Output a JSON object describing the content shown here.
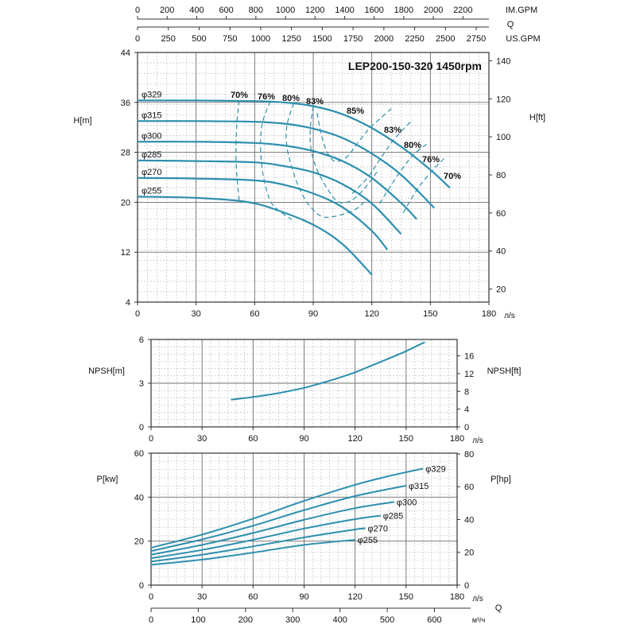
{
  "chart_data": [
    {
      "type": "line",
      "name": "head",
      "title": "LEP200-150-320 1450rpm",
      "xlabel": "л/s",
      "ylabel": "H[m]",
      "ylabel_right": "H[ft]",
      "xlim": [
        0,
        180
      ],
      "ylim": [
        4,
        44
      ],
      "xticks": [
        "0",
        "30",
        "60",
        "90",
        "120",
        "150",
        "180"
      ],
      "yticks": [
        "4",
        "12",
        "20",
        "28",
        "36",
        "44"
      ],
      "yticks_right": [
        "20",
        "40",
        "60",
        "80",
        "100",
        "120",
        "140"
      ],
      "grid": true,
      "top_axes": {
        "q_label": "Q",
        "im_gpm_label": "IM.GPM",
        "im_gpm_ticks": [
          "0",
          "200",
          "400",
          "600",
          "800",
          "1000",
          "1200",
          "1400",
          "1600",
          "1800",
          "2000",
          "2200"
        ],
        "us_gpm_label": "US.GPM",
        "us_gpm_ticks": [
          "0",
          "250",
          "500",
          "750",
          "1000",
          "1250",
          "1500",
          "1750",
          "2000",
          "2250",
          "2500",
          "2750"
        ]
      },
      "series": [
        {
          "name": "φ329",
          "x": [
            0,
            30,
            60,
            75,
            90,
            105,
            120,
            135,
            150,
            160
          ],
          "y": [
            36.3,
            36.3,
            36.2,
            36.0,
            35.4,
            34.1,
            31.9,
            28.9,
            25.2,
            22.3
          ]
        },
        {
          "name": "φ315",
          "x": [
            0,
            30,
            60,
            75,
            90,
            105,
            120,
            135,
            152
          ],
          "y": [
            33.0,
            33.0,
            32.9,
            32.6,
            31.8,
            30.3,
            27.8,
            24.4,
            19.1
          ]
        },
        {
          "name": "φ300",
          "x": [
            0,
            30,
            60,
            75,
            90,
            105,
            120,
            135,
            143
          ],
          "y": [
            29.7,
            29.7,
            29.5,
            29.1,
            28.2,
            26.6,
            23.9,
            19.9,
            17.3
          ]
        },
        {
          "name": "φ285",
          "x": [
            0,
            30,
            60,
            75,
            90,
            105,
            120,
            135
          ],
          "y": [
            26.7,
            26.6,
            26.4,
            25.8,
            24.8,
            22.9,
            19.8,
            14.9
          ]
        },
        {
          "name": "φ270",
          "x": [
            0,
            30,
            60,
            75,
            90,
            105,
            120,
            128
          ],
          "y": [
            23.9,
            23.8,
            23.5,
            22.8,
            21.4,
            19.2,
            15.4,
            12.4
          ]
        },
        {
          "name": "φ255",
          "x": [
            0,
            30,
            55,
            70,
            90,
            105,
            120
          ],
          "y": [
            20.9,
            20.7,
            20.1,
            18.9,
            16.4,
            13.3,
            8.4
          ]
        }
      ],
      "efficiency_curves": [
        {
          "label": "70%",
          "x": [
            52.0,
            51.0,
            50.5,
            50.5,
            51.0,
            52.0
          ],
          "y": [
            36.3,
            33.0,
            29.7,
            26.7,
            23.9,
            20.4
          ]
        },
        {
          "label": "76%",
          "x": [
            68.0,
            64.0,
            63.0,
            63.5,
            65.0,
            69.0,
            79.0
          ],
          "y": [
            36.2,
            32.8,
            29.5,
            26.3,
            23.4,
            19.7,
            17.2
          ]
        },
        {
          "label": "80%",
          "x": [
            80.0,
            76.5,
            76.5,
            79.0,
            82.5,
            88.0,
            96.0,
            110.0,
            117.0
          ],
          "y": [
            35.9,
            32.3,
            28.9,
            25.7,
            22.5,
            19.5,
            17.6,
            18.6,
            20.3
          ]
        },
        {
          "label": "83%",
          "x": [
            90.0,
            88.5,
            89.0,
            92.0,
            97.0,
            102.5,
            109.0,
            116.0,
            123.0
          ],
          "y": [
            35.4,
            31.7,
            28.3,
            25.2,
            22.3,
            20.1,
            20.2,
            22.1,
            25.0
          ]
        },
        {
          "label": "83%",
          "x": [
            92.0,
            94.0,
            97.0,
            101.0,
            107.0,
            113.0,
            119.0,
            125.0,
            130.0
          ],
          "y": [
            34.3,
            31.0,
            28.1,
            26.6,
            27.2,
            29.6,
            31.9,
            33.6,
            35.0
          ]
        },
        {
          "label": "80%",
          "x": [
            110.0,
            118.0,
            124.0,
            130.0,
            136.0,
            141.0
          ],
          "y": [
            21.4,
            24.0,
            26.8,
            29.5,
            31.7,
            33.2
          ]
        },
        {
          "label": "76%",
          "x": [
            124.0,
            133.0,
            141.0,
            148.0
          ],
          "y": [
            19.8,
            24.2,
            27.5,
            29.3
          ]
        },
        {
          "label": "70%",
          "x": [
            136.0,
            144.0,
            152.0,
            157.0
          ],
          "y": [
            18.3,
            22.4,
            25.4,
            27.0
          ]
        }
      ],
      "efficiency_labels": [
        "70%",
        "76%",
        "80%",
        "83%",
        "85%",
        "83%",
        "80%",
        "76%",
        "70%"
      ],
      "diameter_labels": [
        "φ329",
        "φ315",
        "φ300",
        "φ285",
        "φ270",
        "φ255"
      ]
    },
    {
      "type": "line",
      "name": "npsh",
      "xlabel": "л/s",
      "ylabel": "NPSH[m]",
      "ylabel_right": "NPSH[ft]",
      "xlim": [
        0,
        180
      ],
      "ylim": [
        0,
        6
      ],
      "xticks": [
        "0",
        "30",
        "60",
        "90",
        "120",
        "150",
        "180"
      ],
      "yticks": [
        "0",
        "3",
        "6"
      ],
      "yticks_right": [
        "0",
        "4",
        "8",
        "12",
        "16"
      ],
      "grid": true,
      "series": [
        {
          "x": [
            47,
            60,
            75,
            90,
            100,
            110,
            120,
            130,
            140,
            150,
            161
          ],
          "y": [
            1.87,
            2.05,
            2.32,
            2.68,
            3.0,
            3.35,
            3.75,
            4.22,
            4.7,
            5.2,
            5.82
          ]
        }
      ]
    },
    {
      "type": "line",
      "name": "power",
      "xlabel": "л/s",
      "ylabel": "P[kw]",
      "ylabel_right": "P[hp]",
      "xlim": [
        0,
        180
      ],
      "ylim": [
        0,
        60
      ],
      "xticks": [
        "0",
        "30",
        "60",
        "90",
        "120",
        "150",
        "180"
      ],
      "yticks": [
        "0",
        "20",
        "40",
        "60"
      ],
      "yticks_right": [
        "0",
        "20",
        "40",
        "60",
        "80"
      ],
      "grid": true,
      "bottom_axis": {
        "label": "Q",
        "unit": "м³/ч",
        "ticks": [
          "0",
          "100",
          "200",
          "300",
          "400",
          "500",
          "600"
        ]
      },
      "series": [
        {
          "name": "φ329",
          "x": [
            0,
            30,
            60,
            90,
            120,
            140,
            160
          ],
          "y": [
            17.0,
            23.0,
            30.2,
            38.3,
            45.6,
            49.6,
            53.0
          ]
        },
        {
          "name": "φ315",
          "x": [
            0,
            30,
            60,
            90,
            120,
            150
          ],
          "y": [
            15.5,
            20.8,
            27.0,
            34.1,
            40.5,
            45.2
          ]
        },
        {
          "name": "φ300",
          "x": [
            0,
            30,
            60,
            90,
            120,
            143
          ],
          "y": [
            13.8,
            18.3,
            23.7,
            29.7,
            35.0,
            37.8
          ]
        },
        {
          "name": "φ285",
          "x": [
            0,
            30,
            60,
            90,
            120,
            135
          ],
          "y": [
            12.2,
            16.0,
            20.6,
            25.7,
            30.0,
            31.6
          ]
        },
        {
          "name": "φ270",
          "x": [
            0,
            30,
            60,
            90,
            120,
            126
          ],
          "y": [
            10.7,
            13.8,
            17.6,
            21.7,
            25.3,
            25.8
          ]
        },
        {
          "name": "φ255",
          "x": [
            0,
            30,
            60,
            90,
            120
          ],
          "y": [
            9.2,
            11.6,
            14.8,
            18.3,
            20.6
          ]
        }
      ]
    }
  ]
}
